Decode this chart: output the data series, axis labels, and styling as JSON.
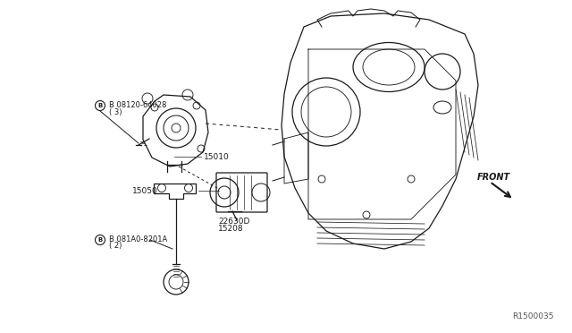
{
  "background_color": "#ffffff",
  "line_color": "#1a1a1a",
  "text_color": "#1a1a1a",
  "fig_width": 6.4,
  "fig_height": 3.72,
  "dpi": 100,
  "watermark": "R1500035",
  "bolt_top_label": "B 08120-64028",
  "bolt_top_sub": "( 3)",
  "bolt_bot_label": "B 081A0-8201A",
  "bolt_bot_sub": "( 2)",
  "label_15010": "15010",
  "label_15050": "15050",
  "label_22630": "22630D",
  "label_15208": "15208",
  "label_front": "FRONT"
}
